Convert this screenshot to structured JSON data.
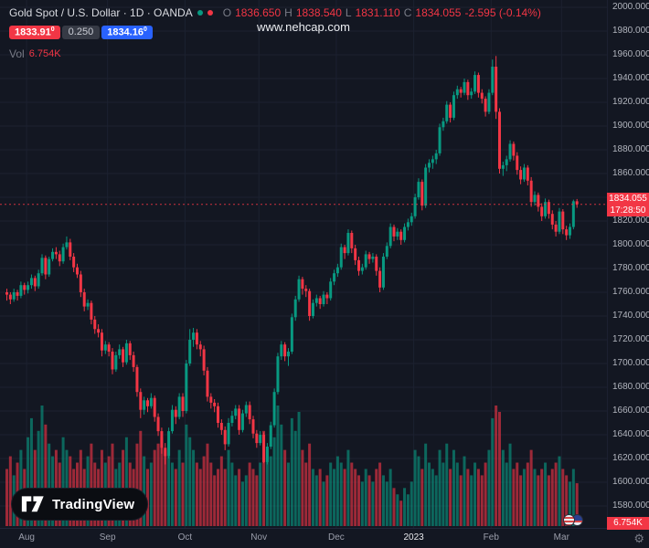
{
  "header": {
    "title": "Gold Spot / U.S. Dollar · 1D · OANDA",
    "ohlc": {
      "o_label": "O",
      "o": "1836.650",
      "h_label": "H",
      "h": "1838.540",
      "l_label": "L",
      "l": "1831.110",
      "c_label": "C",
      "c": "1834.055",
      "change": "-2.595 (-0.14%)"
    },
    "sell": {
      "price": "1833.91",
      "sup": "0"
    },
    "spread": "0.250",
    "buy": {
      "price": "1834.16",
      "sup": "0"
    },
    "vol_label": "Vol",
    "vol_value": "6.754K"
  },
  "watermark": "www.nehcap.com",
  "price_scale": {
    "current_price": "1834.055",
    "countdown": "17:28:50",
    "volume_label": "6.754K"
  },
  "footer": {
    "logo_text": "TradingView"
  },
  "icons": {
    "settings": "⚙"
  },
  "colors": {
    "up": "#089981",
    "down": "#f23645",
    "buy_blue": "#2962ff",
    "sell_red": "#f23645",
    "axis_text": "#b2b5be",
    "grid": "#1c2130",
    "background": "#131722"
  },
  "chart_data": {
    "type": "candlestick",
    "title": "Gold Spot / U.S. Dollar, 1D, OANDA",
    "symbol": "XAU/USD",
    "last_price": 1834.055,
    "change": -2.595,
    "change_pct": -0.14,
    "price_axis": {
      "min": 1580,
      "max": 2000,
      "step": 20
    },
    "volume_axis_max_k": 19,
    "last_volume_k": 6.754,
    "month_ticks": [
      {
        "label": "Aug",
        "index": 6,
        "major": false
      },
      {
        "label": "Sep",
        "index": 29,
        "major": false
      },
      {
        "label": "Oct",
        "index": 51,
        "major": false
      },
      {
        "label": "Nov",
        "index": 72,
        "major": false
      },
      {
        "label": "Dec",
        "index": 94,
        "major": false
      },
      {
        "label": "2023",
        "index": 116,
        "major": true
      },
      {
        "label": "Feb",
        "index": 138,
        "major": false
      },
      {
        "label": "Mar",
        "index": 158,
        "major": false
      }
    ],
    "candles": [
      [
        1760,
        1763,
        1753,
        1758
      ],
      [
        1758,
        1760,
        1750,
        1754
      ],
      [
        1754,
        1763,
        1752,
        1760
      ],
      [
        1760,
        1762,
        1753,
        1757
      ],
      [
        1757,
        1769,
        1755,
        1766
      ],
      [
        1766,
        1768,
        1758,
        1762
      ],
      [
        1762,
        1769,
        1759,
        1766
      ],
      [
        1766,
        1775,
        1763,
        1772
      ],
      [
        1772,
        1774,
        1761,
        1765
      ],
      [
        1765,
        1779,
        1763,
        1776
      ],
      [
        1776,
        1792,
        1774,
        1789
      ],
      [
        1789,
        1791,
        1771,
        1775
      ],
      [
        1775,
        1790,
        1773,
        1788
      ],
      [
        1788,
        1797,
        1786,
        1794
      ],
      [
        1794,
        1798,
        1788,
        1792
      ],
      [
        1792,
        1795,
        1782,
        1786
      ],
      [
        1786,
        1801,
        1784,
        1798
      ],
      [
        1798,
        1807,
        1796,
        1802
      ],
      [
        1802,
        1805,
        1787,
        1790
      ],
      [
        1790,
        1793,
        1777,
        1781
      ],
      [
        1781,
        1784,
        1772,
        1775
      ],
      [
        1775,
        1778,
        1756,
        1760
      ],
      [
        1760,
        1763,
        1744,
        1748
      ],
      [
        1748,
        1754,
        1745,
        1751
      ],
      [
        1751,
        1753,
        1733,
        1737
      ],
      [
        1737,
        1740,
        1725,
        1729
      ],
      [
        1729,
        1733,
        1722,
        1726
      ],
      [
        1726,
        1729,
        1706,
        1711
      ],
      [
        1711,
        1719,
        1708,
        1716
      ],
      [
        1716,
        1718,
        1706,
        1710
      ],
      [
        1710,
        1713,
        1691,
        1695
      ],
      [
        1695,
        1710,
        1693,
        1707
      ],
      [
        1707,
        1716,
        1704,
        1712
      ],
      [
        1712,
        1714,
        1697,
        1701
      ],
      [
        1701,
        1720,
        1699,
        1717
      ],
      [
        1717,
        1719,
        1703,
        1707
      ],
      [
        1707,
        1710,
        1693,
        1697
      ],
      [
        1697,
        1699,
        1672,
        1676
      ],
      [
        1676,
        1679,
        1654,
        1661
      ],
      [
        1661,
        1672,
        1657,
        1669
      ],
      [
        1669,
        1671,
        1659,
        1664
      ],
      [
        1664,
        1675,
        1662,
        1671
      ],
      [
        1671,
        1673,
        1651,
        1655
      ],
      [
        1655,
        1658,
        1639,
        1643
      ],
      [
        1643,
        1646,
        1624,
        1629
      ],
      [
        1629,
        1633,
        1615,
        1622
      ],
      [
        1622,
        1646,
        1620,
        1643
      ],
      [
        1643,
        1665,
        1641,
        1661
      ],
      [
        1661,
        1664,
        1649,
        1655
      ],
      [
        1655,
        1675,
        1653,
        1672
      ],
      [
        1672,
        1675,
        1655,
        1660
      ],
      [
        1660,
        1703,
        1658,
        1700
      ],
      [
        1700,
        1729,
        1698,
        1720
      ],
      [
        1720,
        1730,
        1714,
        1726
      ],
      [
        1726,
        1729,
        1712,
        1716
      ],
      [
        1716,
        1719,
        1706,
        1712
      ],
      [
        1712,
        1715,
        1690,
        1694
      ],
      [
        1694,
        1697,
        1668,
        1672
      ],
      [
        1672,
        1675,
        1662,
        1667
      ],
      [
        1667,
        1670,
        1659,
        1664
      ],
      [
        1664,
        1667,
        1646,
        1650
      ],
      [
        1650,
        1653,
        1640,
        1644
      ],
      [
        1644,
        1647,
        1627,
        1632
      ],
      [
        1632,
        1654,
        1630,
        1650
      ],
      [
        1650,
        1660,
        1647,
        1656
      ],
      [
        1656,
        1665,
        1653,
        1662
      ],
      [
        1662,
        1665,
        1640,
        1644
      ],
      [
        1644,
        1661,
        1642,
        1658
      ],
      [
        1658,
        1668,
        1655,
        1665
      ],
      [
        1665,
        1668,
        1649,
        1653
      ],
      [
        1653,
        1656,
        1637,
        1641
      ],
      [
        1641,
        1644,
        1629,
        1633
      ],
      [
        1633,
        1643,
        1631,
        1640
      ],
      [
        1640,
        1642,
        1616,
        1617
      ],
      [
        1617,
        1633,
        1615,
        1630
      ],
      [
        1630,
        1651,
        1628,
        1648
      ],
      [
        1648,
        1679,
        1646,
        1676
      ],
      [
        1676,
        1709,
        1674,
        1706
      ],
      [
        1706,
        1719,
        1703,
        1716
      ],
      [
        1716,
        1718,
        1702,
        1706
      ],
      [
        1706,
        1713,
        1698,
        1710
      ],
      [
        1710,
        1742,
        1708,
        1739
      ],
      [
        1739,
        1757,
        1736,
        1754
      ],
      [
        1754,
        1774,
        1752,
        1771
      ],
      [
        1771,
        1773,
        1758,
        1763
      ],
      [
        1763,
        1766,
        1756,
        1761
      ],
      [
        1761,
        1763,
        1736,
        1740
      ],
      [
        1740,
        1754,
        1738,
        1751
      ],
      [
        1751,
        1758,
        1748,
        1755
      ],
      [
        1755,
        1757,
        1746,
        1750
      ],
      [
        1750,
        1761,
        1748,
        1758
      ],
      [
        1758,
        1760,
        1750,
        1755
      ],
      [
        1755,
        1772,
        1753,
        1769
      ],
      [
        1769,
        1779,
        1766,
        1776
      ],
      [
        1776,
        1784,
        1773,
        1781
      ],
      [
        1781,
        1801,
        1779,
        1798
      ],
      [
        1798,
        1800,
        1788,
        1793
      ],
      [
        1793,
        1813,
        1791,
        1810
      ],
      [
        1810,
        1812,
        1793,
        1797
      ],
      [
        1797,
        1800,
        1783,
        1787
      ],
      [
        1787,
        1790,
        1774,
        1778
      ],
      [
        1778,
        1784,
        1775,
        1781
      ],
      [
        1781,
        1795,
        1779,
        1792
      ],
      [
        1792,
        1794,
        1784,
        1788
      ],
      [
        1788,
        1793,
        1785,
        1790
      ],
      [
        1790,
        1792,
        1774,
        1778
      ],
      [
        1778,
        1781,
        1760,
        1764
      ],
      [
        1764,
        1793,
        1762,
        1790
      ],
      [
        1790,
        1802,
        1788,
        1799
      ],
      [
        1799,
        1818,
        1797,
        1815
      ],
      [
        1815,
        1817,
        1803,
        1807
      ],
      [
        1807,
        1814,
        1804,
        1811
      ],
      [
        1811,
        1813,
        1800,
        1804
      ],
      [
        1804,
        1818,
        1802,
        1815
      ],
      [
        1815,
        1822,
        1812,
        1819
      ],
      [
        1819,
        1827,
        1816,
        1824
      ],
      [
        1824,
        1843,
        1822,
        1840
      ],
      [
        1840,
        1856,
        1838,
        1853
      ],
      [
        1853,
        1855,
        1829,
        1833
      ],
      [
        1833,
        1868,
        1831,
        1865
      ],
      [
        1865,
        1872,
        1861,
        1869
      ],
      [
        1869,
        1875,
        1864,
        1872
      ],
      [
        1872,
        1880,
        1868,
        1877
      ],
      [
        1877,
        1902,
        1875,
        1899
      ],
      [
        1899,
        1907,
        1896,
        1904
      ],
      [
        1904,
        1921,
        1902,
        1918
      ],
      [
        1918,
        1920,
        1903,
        1907
      ],
      [
        1907,
        1929,
        1905,
        1926
      ],
      [
        1926,
        1934,
        1923,
        1931
      ],
      [
        1931,
        1933,
        1924,
        1928
      ],
      [
        1928,
        1940,
        1926,
        1937
      ],
      [
        1937,
        1939,
        1922,
        1926
      ],
      [
        1926,
        1932,
        1923,
        1929
      ],
      [
        1929,
        1946,
        1927,
        1943
      ],
      [
        1943,
        1945,
        1924,
        1928
      ],
      [
        1928,
        1931,
        1919,
        1923
      ],
      [
        1923,
        1925,
        1908,
        1912
      ],
      [
        1912,
        1931,
        1910,
        1928
      ],
      [
        1928,
        1956,
        1926,
        1950
      ],
      [
        1950,
        1959,
        1906,
        1912
      ],
      [
        1912,
        1915,
        1860,
        1864
      ],
      [
        1864,
        1870,
        1858,
        1867
      ],
      [
        1867,
        1875,
        1862,
        1872
      ],
      [
        1872,
        1888,
        1870,
        1885
      ],
      [
        1885,
        1887,
        1871,
        1875
      ],
      [
        1875,
        1878,
        1859,
        1863
      ],
      [
        1863,
        1866,
        1851,
        1855
      ],
      [
        1855,
        1868,
        1853,
        1865
      ],
      [
        1865,
        1867,
        1850,
        1854
      ],
      [
        1854,
        1857,
        1832,
        1836
      ],
      [
        1836,
        1845,
        1833,
        1842
      ],
      [
        1842,
        1844,
        1828,
        1832
      ],
      [
        1832,
        1835,
        1820,
        1824
      ],
      [
        1824,
        1839,
        1822,
        1836
      ],
      [
        1836,
        1838,
        1822,
        1826
      ],
      [
        1826,
        1829,
        1813,
        1817
      ],
      [
        1817,
        1820,
        1807,
        1811
      ],
      [
        1811,
        1831,
        1809,
        1828
      ],
      [
        1828,
        1830,
        1809,
        1813
      ],
      [
        1813,
        1816,
        1804,
        1808
      ],
      [
        1808,
        1818,
        1805,
        1815
      ],
      [
        1815,
        1838,
        1813,
        1836.65
      ],
      [
        1836.65,
        1838.54,
        1831.11,
        1834.055
      ]
    ],
    "volumes_k": [
      9,
      11,
      8,
      10,
      12,
      9,
      14,
      17,
      12,
      15,
      19,
      16,
      13,
      11,
      12,
      10,
      14,
      12,
      11,
      9,
      10,
      12,
      9,
      11,
      13,
      10,
      9,
      12,
      10,
      11,
      13,
      9,
      10,
      12,
      14,
      10,
      9,
      13,
      15,
      11,
      9,
      10,
      12,
      13,
      14,
      12,
      11,
      10,
      9,
      12,
      10,
      16,
      14,
      12,
      10,
      9,
      11,
      13,
      10,
      8,
      9,
      11,
      9,
      12,
      10,
      8,
      9,
      7,
      8,
      10,
      9,
      8,
      10,
      15,
      12,
      11,
      14,
      19,
      16,
      12,
      10,
      17,
      15,
      18,
      12,
      10,
      13,
      9,
      8,
      9,
      7,
      8,
      10,
      9,
      11,
      10,
      9,
      12,
      10,
      9,
      8,
      7,
      9,
      8,
      7,
      9,
      10,
      8,
      7,
      9,
      6,
      5,
      4,
      6,
      5,
      7,
      12,
      11,
      9,
      13,
      10,
      9,
      8,
      12,
      10,
      13,
      9,
      12,
      10,
      8,
      11,
      9,
      8,
      10,
      9,
      8,
      10,
      12,
      17,
      19,
      18,
      12,
      10,
      13,
      9,
      10,
      8,
      9,
      10,
      12,
      9,
      8,
      9,
      10,
      8,
      9,
      10,
      11,
      9,
      8,
      7,
      9,
      6.754
    ]
  }
}
